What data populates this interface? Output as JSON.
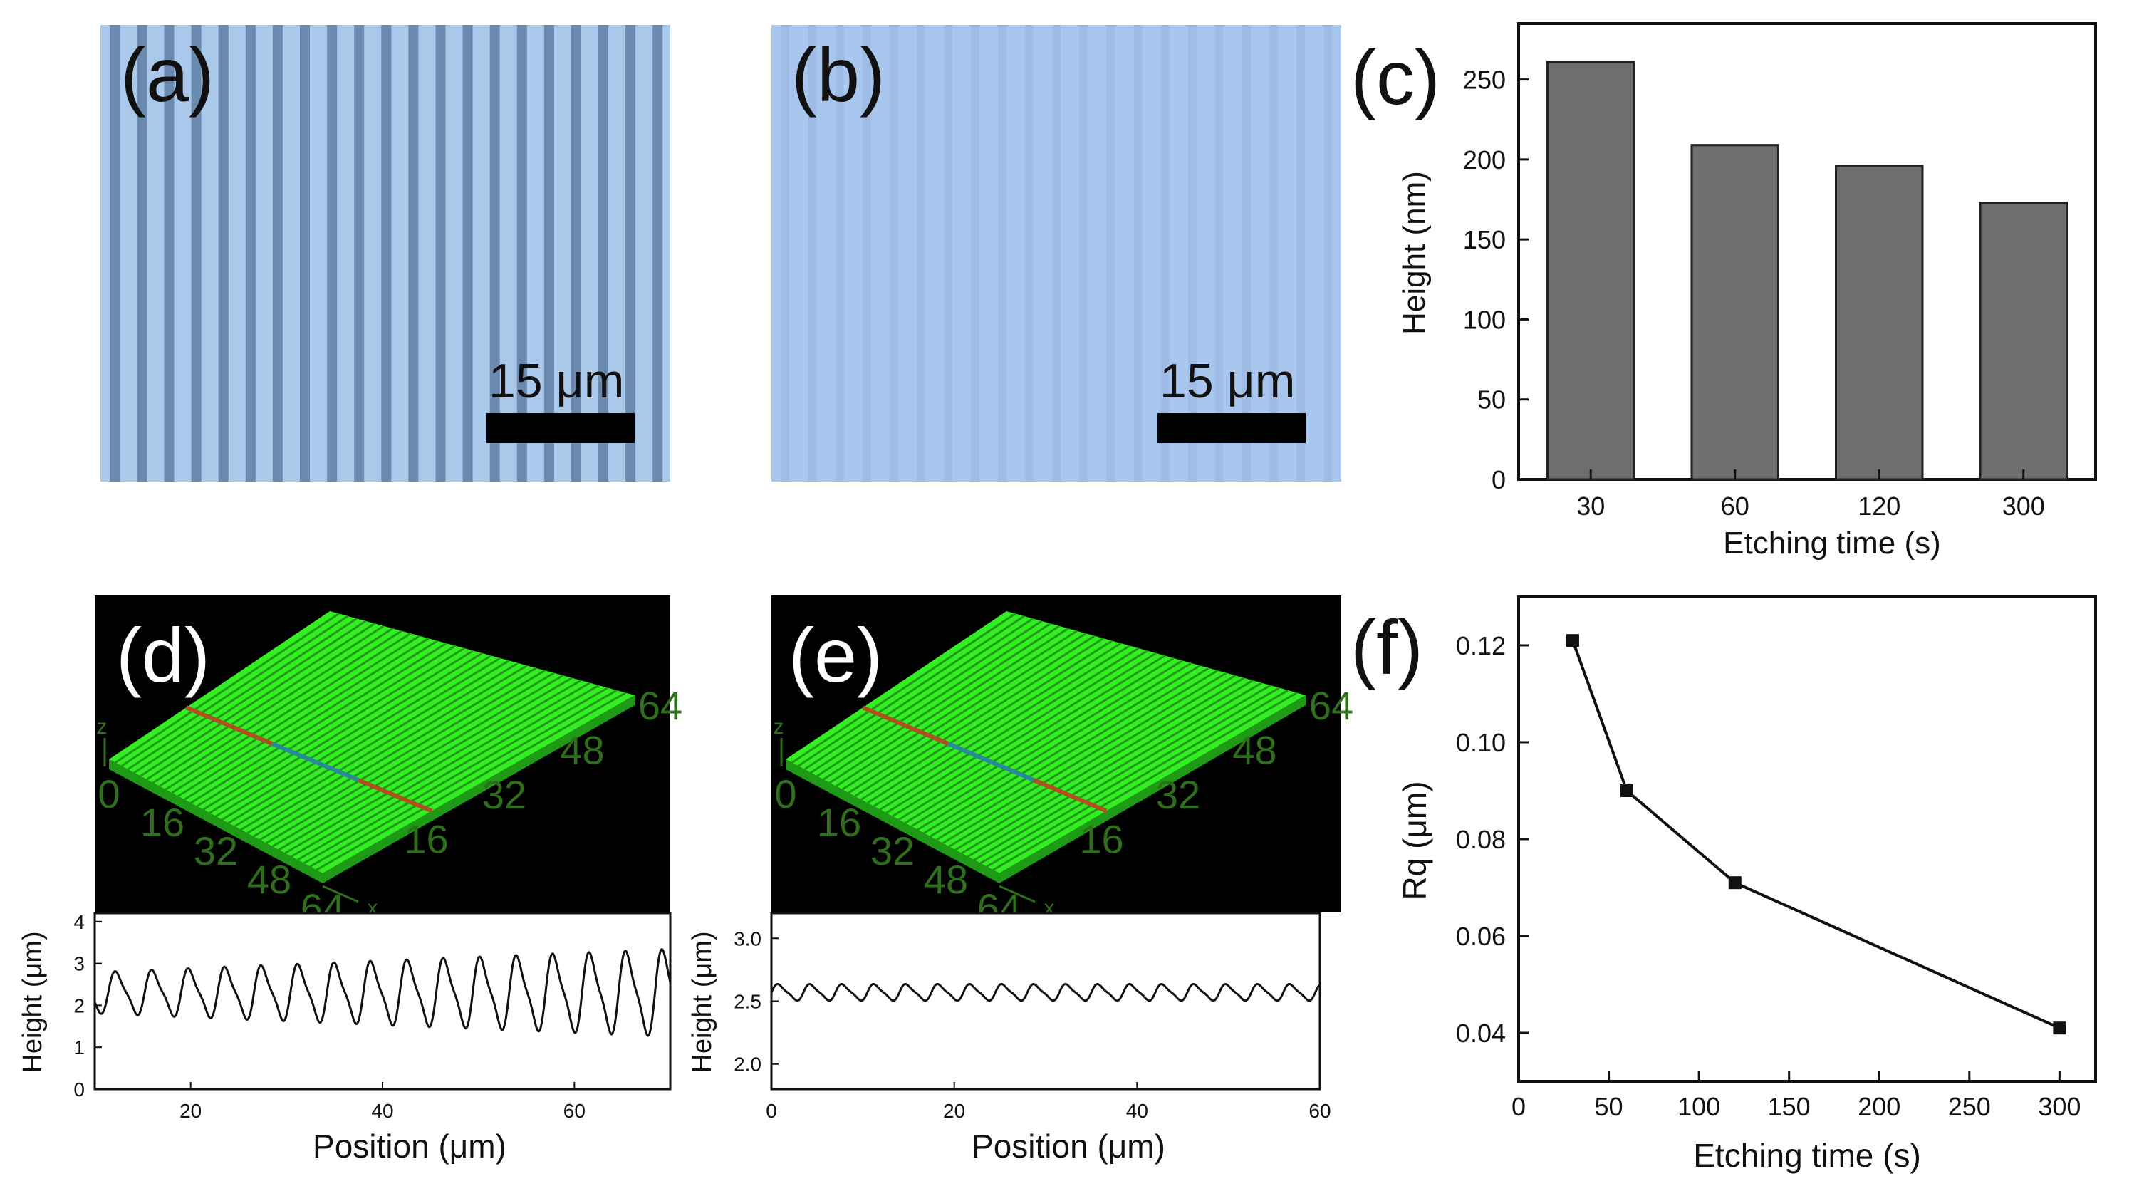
{
  "panels": {
    "a": {
      "label": "(a)",
      "scale_bar": "15 μm"
    },
    "b": {
      "label": "(b)",
      "scale_bar": "15 μm"
    },
    "c": {
      "label": "(c)"
    },
    "d": {
      "label": "(d)",
      "axis_x_ticks": [
        "0",
        "16",
        "32",
        "48",
        "64"
      ],
      "axis_y_ticks": [
        "16",
        "32",
        "48",
        "64"
      ],
      "axis_x_name": "x",
      "axis_z_name": "z"
    },
    "e": {
      "label": "(e)",
      "axis_x_ticks": [
        "0",
        "16",
        "32",
        "48",
        "64"
      ],
      "axis_y_ticks": [
        "16",
        "32",
        "48",
        "64"
      ],
      "axis_x_name": "x",
      "axis_z_name": "z"
    },
    "f": {
      "label": "(f)"
    }
  },
  "chart_data": [
    {
      "id": "c",
      "type": "bar",
      "categories": [
        "30",
        "60",
        "120",
        "300"
      ],
      "values": [
        261,
        209,
        196,
        173
      ],
      "xlabel": "Etching time (s)",
      "ylabel": "Height (nm)",
      "ylim": [
        0,
        285
      ],
      "yticks": [
        0,
        50,
        100,
        150,
        200,
        250
      ],
      "bar_color": "#6e6e6e"
    },
    {
      "id": "d_profile",
      "type": "line",
      "xlabel": "Position (μm)",
      "ylabel": "Height (μm)",
      "xlim": [
        10,
        70
      ],
      "ylim": [
        0,
        4.2
      ],
      "xticks": [
        20,
        40,
        60
      ],
      "yticks": [
        0,
        1,
        2,
        3,
        4
      ],
      "period": 3.8,
      "baseline": 2.3,
      "amplitude_start": 0.45,
      "amplitude_end": 0.95
    },
    {
      "id": "e_profile",
      "type": "line",
      "xlabel": "Position (μm)",
      "ylabel": "Height (μm)",
      "xlim": [
        0,
        60
      ],
      "ylim": [
        1.8,
        3.2
      ],
      "xticks": [
        0,
        20,
        40,
        60
      ],
      "yticks": [
        2.0,
        2.5,
        3.0
      ],
      "ytick_labels": [
        "2.0",
        "2.5",
        "3.0"
      ],
      "period": 3.5,
      "baseline": 2.57,
      "amplitude": 0.06
    },
    {
      "id": "f",
      "type": "line",
      "x": [
        30,
        60,
        120,
        300
      ],
      "y": [
        0.121,
        0.09,
        0.071,
        0.041
      ],
      "xlabel": "Etching time (s)",
      "ylabel": "Rq (μm)",
      "xlim": [
        0,
        320
      ],
      "ylim": [
        0.03,
        0.13
      ],
      "xticks": [
        0,
        50,
        100,
        150,
        200,
        250,
        300
      ],
      "yticks": [
        0.04,
        0.06,
        0.08,
        0.1,
        0.12
      ],
      "ytick_labels": [
        "0.04",
        "0.06",
        "0.08",
        "0.10",
        "0.12"
      ]
    }
  ],
  "colors": {
    "micro_a_bg": "#a9c8ea",
    "micro_a_stripe": "#5f7fa6",
    "micro_b_bg": "#a8c6ee",
    "micro_b_stripe": "#98b6e0",
    "surface_green": "#33ee22",
    "surface_dark": "#1f9a16",
    "axis_label_3d": "#2f6e1c",
    "profile_line": "#111111"
  }
}
